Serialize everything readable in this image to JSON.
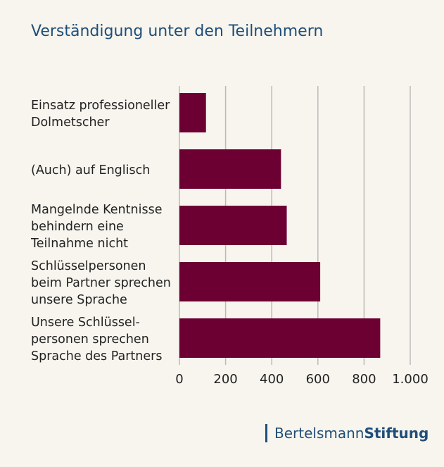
{
  "chart_data": {
    "type": "bar",
    "orientation": "horizontal",
    "title": "Verständigung unter den Teilnehmern",
    "categories": [
      "Einsatz professioneller\nDolmetscher",
      "(Auch) auf Englisch",
      "Mangelnde Kentnisse\nbehindern eine\nTeilnahme nicht",
      "Schlüsselpersonen\nbeim Partner sprechen\nunsere Sprache",
      "Unsere Schlüssel-\npersonen sprechen\nSprache des Partners"
    ],
    "values": [
      115,
      440,
      465,
      610,
      870
    ],
    "color": "#6c0032",
    "xlim": [
      0,
      1000
    ],
    "xticks": [
      0,
      200,
      400,
      600,
      800,
      {
        "value": 1000,
        "label": "1.000"
      }
    ],
    "grid": true
  },
  "logo": {
    "name": "Bertelsmann",
    "suffix": "Stiftung"
  }
}
